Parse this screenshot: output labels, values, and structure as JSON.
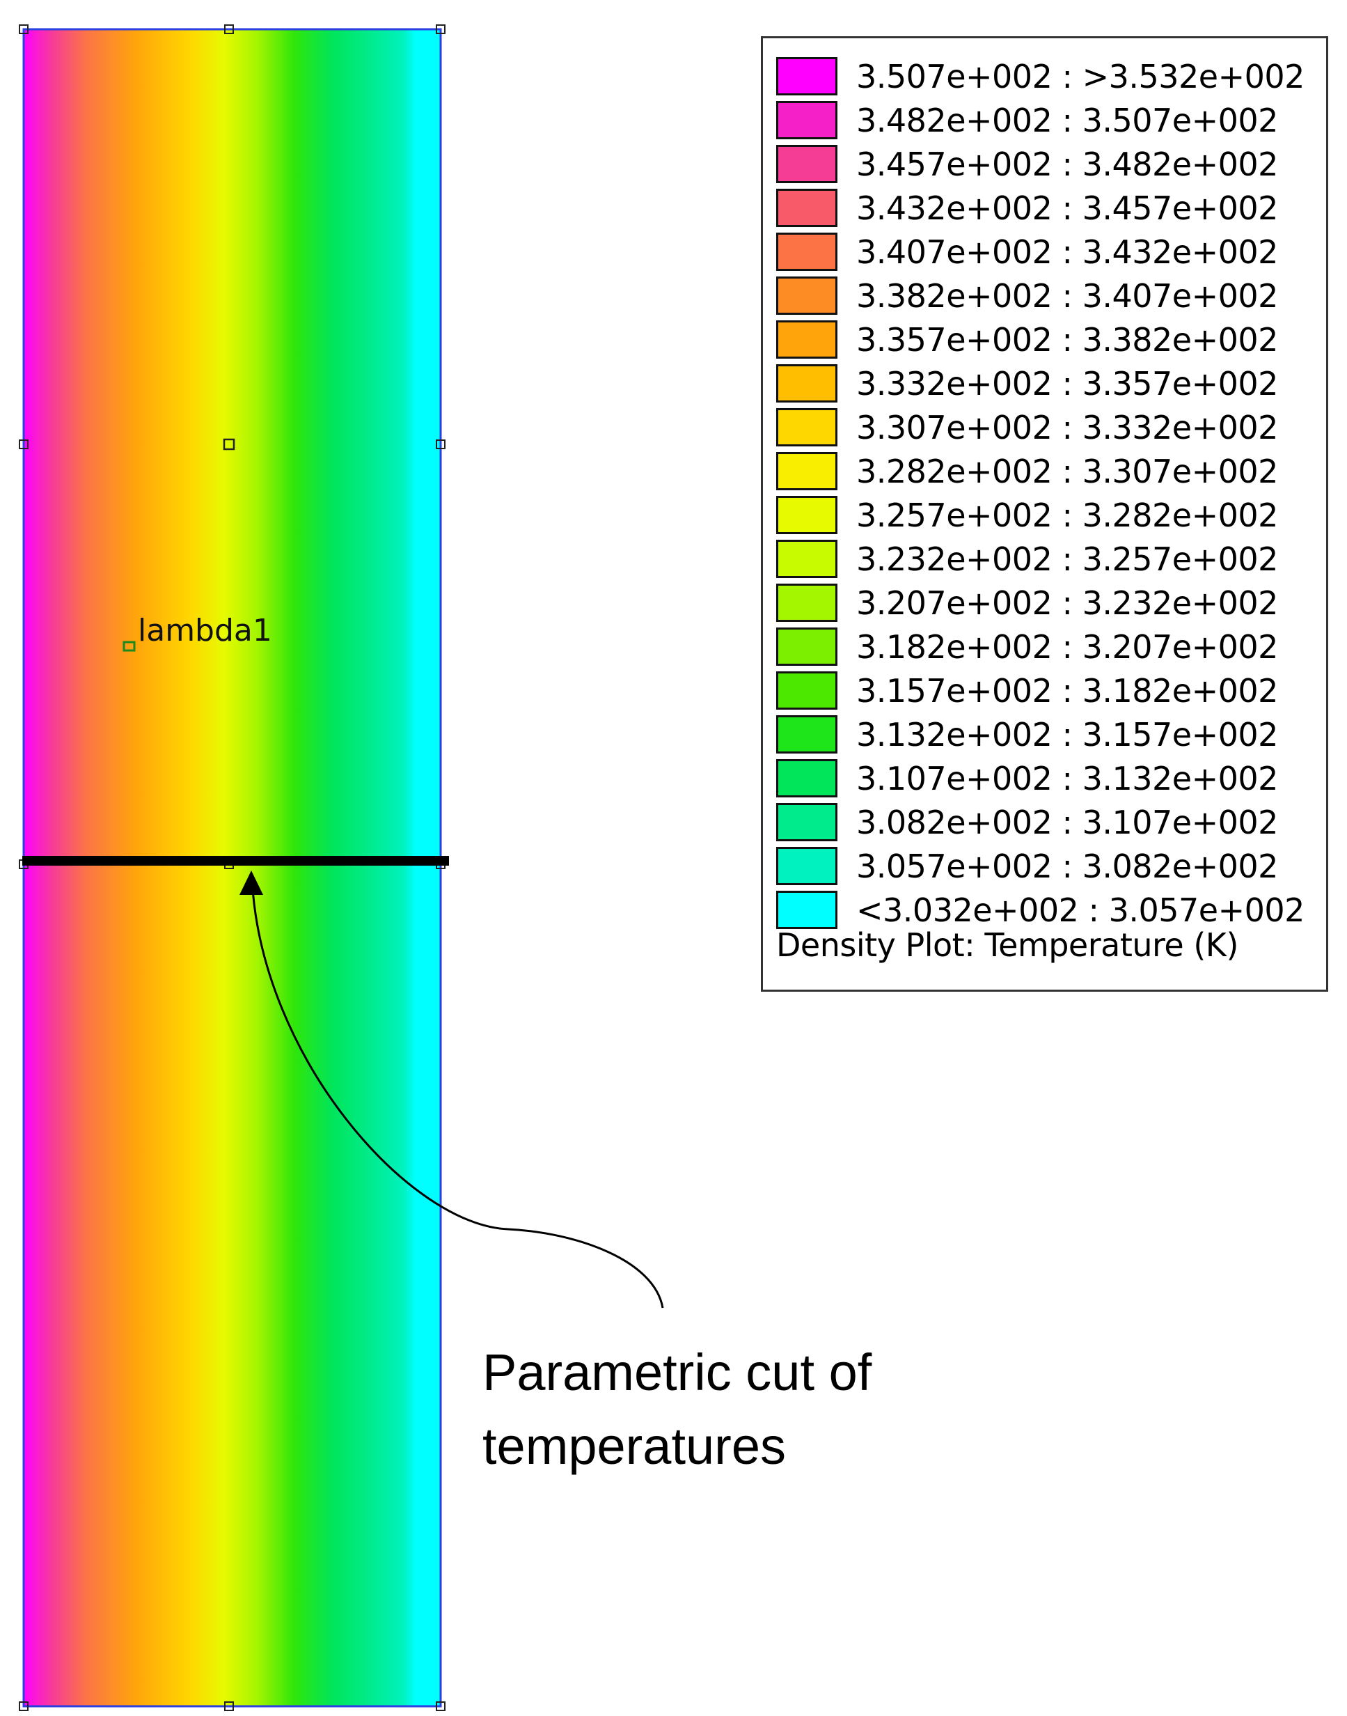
{
  "plot": {
    "region_label": "lambda1",
    "annotation": "Parametric cut of temperatures"
  },
  "legend": {
    "caption": "Density Plot: Temperature (K)",
    "entries": [
      {
        "range": "3.507e+002 :  >3.532e+002",
        "color": "#FF00FF"
      },
      {
        "range": "3.482e+002 :  3.507e+002",
        "color": "#F520C8"
      },
      {
        "range": "3.457e+002 :  3.482e+002",
        "color": "#F63D96"
      },
      {
        "range": "3.432e+002 :  3.457e+002",
        "color": "#F95A69"
      },
      {
        "range": "3.407e+002 :  3.432e+002",
        "color": "#FC7446"
      },
      {
        "range": "3.382e+002 :  3.407e+002",
        "color": "#FE8C24"
      },
      {
        "range": "3.357e+002 :  3.382e+002",
        "color": "#FFA50B"
      },
      {
        "range": "3.332e+002 :  3.357e+002",
        "color": "#FFBF00"
      },
      {
        "range": "3.307e+002 :  3.332e+002",
        "color": "#FFD700"
      },
      {
        "range": "3.282e+002 :  3.307e+002",
        "color": "#F9EE00"
      },
      {
        "range": "3.257e+002 :  3.282e+002",
        "color": "#E7FA00"
      },
      {
        "range": "3.232e+002 :  3.257e+002",
        "color": "#C8FA00"
      },
      {
        "range": "3.207e+002 :  3.232e+002",
        "color": "#A4F500"
      },
      {
        "range": "3.182e+002 :  3.207e+002",
        "color": "#7CEF00"
      },
      {
        "range": "3.157e+002 :  3.182e+002",
        "color": "#4CE800"
      },
      {
        "range": "3.132e+002 :  3.157e+002",
        "color": "#1DE51A"
      },
      {
        "range": "3.107e+002 :  3.132e+002",
        "color": "#00E55A"
      },
      {
        "range": "3.082e+002 :  3.107e+002",
        "color": "#00EB8C"
      },
      {
        "range": "3.057e+002 :  3.082e+002",
        "color": "#00F2BE"
      },
      {
        "range": "<3.032e+002 :  3.057e+002",
        "color": "#00FFFF"
      }
    ]
  }
}
